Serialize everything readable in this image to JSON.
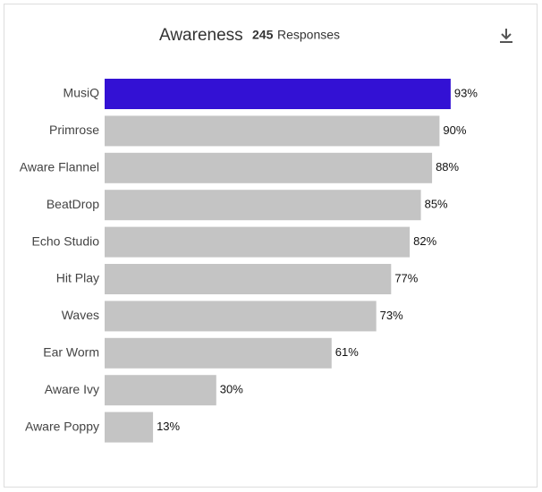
{
  "chart_data": {
    "type": "bar",
    "orientation": "horizontal",
    "title": "Awareness",
    "subtitle_count": 245,
    "subtitle_label": "Responses",
    "categories": [
      "MusiQ",
      "Primrose",
      "Aware Flannel",
      "BeatDrop",
      "Echo Studio",
      "Hit Play",
      "Waves",
      "Ear Worm",
      "Aware Ivy",
      "Aware Poppy"
    ],
    "values": [
      93,
      90,
      88,
      85,
      82,
      77,
      73,
      61,
      30,
      13
    ],
    "value_labels": [
      "93%",
      "90%",
      "88%",
      "85%",
      "82%",
      "77%",
      "73%",
      "61%",
      "30%",
      "13%"
    ],
    "colors": [
      "#3311d4",
      "#c4c4c4",
      "#c4c4c4",
      "#c4c4c4",
      "#c4c4c4",
      "#c4c4c4",
      "#c4c4c4",
      "#c4c4c4",
      "#c4c4c4",
      "#c4c4c4"
    ],
    "xlim": [
      0,
      100
    ],
    "grid": false
  }
}
